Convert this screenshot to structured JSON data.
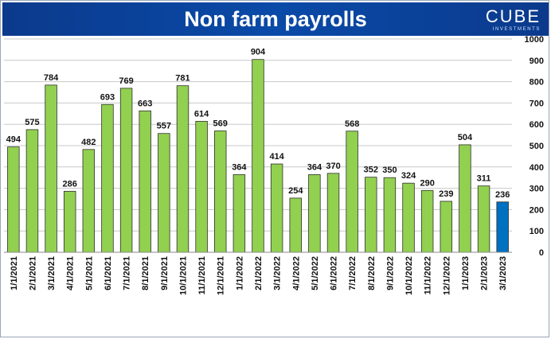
{
  "header": {
    "title": "Non farm payrolls",
    "logo_name": "CUBE",
    "logo_sub": "INVESTMENTS"
  },
  "colors": {
    "banner": "#0b3a8c",
    "bar": "#92d050",
    "bar_highlight": "#0070c0",
    "bar_outline": "#2f2f2f",
    "grid": "#c8c8c8"
  },
  "chart_data": {
    "type": "bar",
    "title": "Non farm payrolls",
    "categories": [
      "1/1/2021",
      "2/1/2021",
      "3/1/2021",
      "4/1/2021",
      "5/1/2021",
      "6/1/2021",
      "7/1/2021",
      "8/1/2021",
      "9/1/2021",
      "10/1/2021",
      "11/1/2021",
      "12/1/2021",
      "1/1/2022",
      "2/1/2022",
      "3/1/2022",
      "4/1/2022",
      "5/1/2022",
      "6/1/2022",
      "7/1/2022",
      "8/1/2022",
      "9/1/2022",
      "10/1/2022",
      "11/1/2022",
      "12/1/2022",
      "1/1/2023",
      "2/1/2023",
      "3/1/2023"
    ],
    "values": [
      494,
      575,
      784,
      286,
      482,
      693,
      769,
      663,
      557,
      781,
      614,
      569,
      364,
      904,
      414,
      254,
      364,
      370,
      568,
      352,
      350,
      324,
      290,
      239,
      504,
      311,
      236
    ],
    "ylim": [
      0,
      1000
    ],
    "yticks": [
      0,
      100,
      200,
      300,
      400,
      500,
      600,
      700,
      800,
      900,
      1000
    ],
    "y_axis_side": "right",
    "grid": true,
    "legend": "none",
    "highlight_last": true,
    "xlabel": "",
    "ylabel": ""
  }
}
